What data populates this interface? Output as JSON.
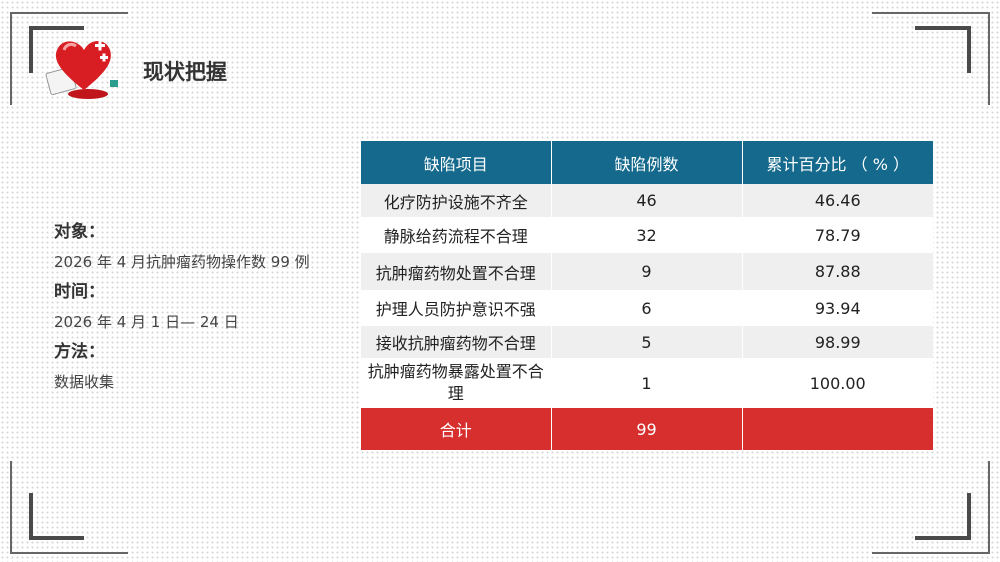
{
  "header": {
    "title": "现状把握",
    "logo_icon": "heart-medical-icon"
  },
  "info": {
    "object_label": "对象：",
    "object_value": "2026 年 4 月抗肿瘤药物操作数 99 例",
    "time_label": "时间：",
    "time_value": "2026 年 4 月 1 日— 24 日",
    "method_label": "方法：",
    "method_value": "数据收集"
  },
  "table": {
    "headers": [
      "缺陷项目",
      "缺陷例数",
      "累计百分比 （ % ）"
    ],
    "rows": [
      [
        "化疗防护设施不齐全",
        "46",
        "46.46"
      ],
      [
        "静脉给药流程不合理",
        "32",
        "78.79"
      ],
      [
        "抗肿瘤药物处置不合理",
        "9",
        "87.88"
      ],
      [
        "护理人员防护意识不强",
        "6",
        "93.94"
      ],
      [
        "接收抗肿瘤药物不合理",
        "5",
        "98.99"
      ],
      [
        "抗肿瘤药物暴露处置不合理",
        "1",
        "100.00"
      ]
    ],
    "total": [
      "合计",
      "99",
      ""
    ]
  },
  "colors": {
    "header_bg": "#14698d",
    "total_bg": "#d62f2e"
  }
}
